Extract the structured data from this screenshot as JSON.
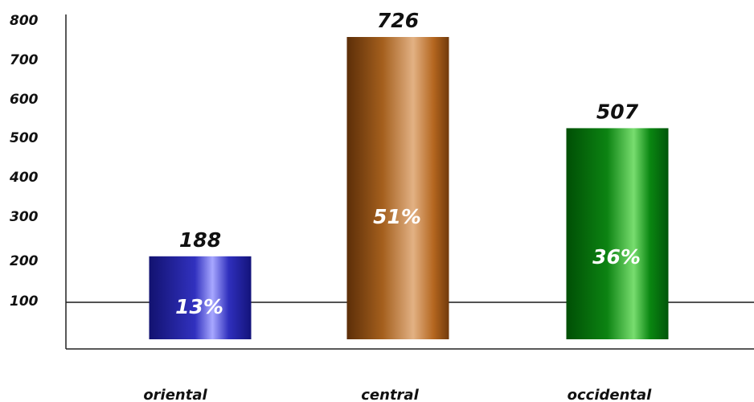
{
  "chart_data": {
    "type": "bar",
    "categories": [
      "oriental",
      "central",
      "occidental"
    ],
    "values": [
      188,
      726,
      507
    ],
    "percent_labels": [
      "13%",
      "51%",
      "36%"
    ],
    "y_ticks": [
      "800",
      "700",
      "600",
      "500",
      "400",
      "300",
      "200",
      "100"
    ],
    "ylim": [
      0,
      800
    ],
    "reference_line": 100,
    "grid": false,
    "legend": "none",
    "colors": {
      "oriental": "#2a2aa6",
      "central": "#b0651e",
      "occidental": "#0f7a14"
    }
  }
}
